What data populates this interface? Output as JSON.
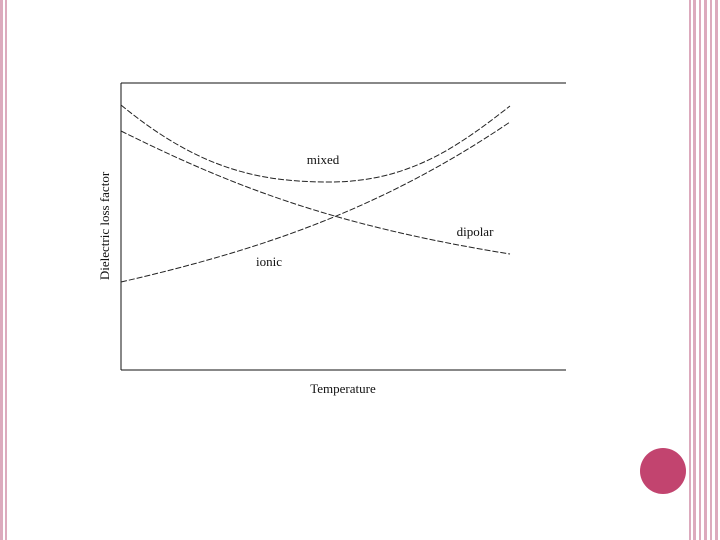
{
  "diagram": {
    "y_axis_label": "Dielectric loss factor",
    "x_axis_label": "Temperature",
    "curves": [
      {
        "label": "mixed"
      },
      {
        "label": "dipolar"
      },
      {
        "label": "ionic"
      }
    ]
  }
}
